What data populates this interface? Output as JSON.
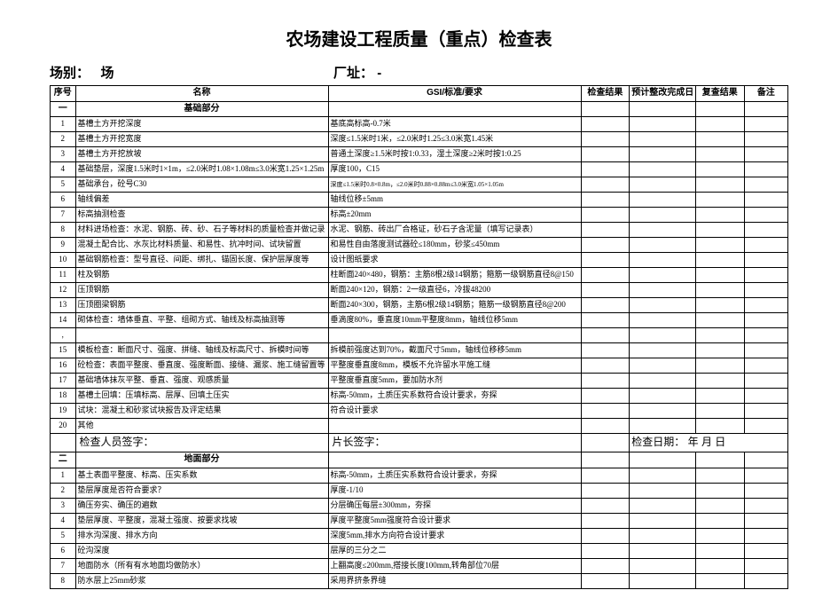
{
  "title": "农场建设工程质量（重点）检查表",
  "meta": {
    "field_label": "场别：",
    "field_value": "场",
    "addr_label": "厂址：",
    "addr_value": "-"
  },
  "columns": {
    "idx": "序号",
    "name": "名称",
    "gsi": "GSI/标准/要求",
    "res": "检查结果",
    "plan": "预计整改完成日",
    "re": "复查结果",
    "note": "备注"
  },
  "section1_idx": "一",
  "section1_title": "基础部分",
  "rows1": [
    {
      "n": "1",
      "name": "基槽土方开挖深度",
      "gsi": "基底高标高-0.7米"
    },
    {
      "n": "2",
      "name": "基槽土方开挖宽度",
      "gsi": "深度≤1.5米时1米，≤2.0米时1.25≤3.0米宽1.45米"
    },
    {
      "n": "3",
      "name": "基槽土方开挖放坡",
      "gsi": "普通土深度≥1.5米时按1:0.33，湿土深度≥2米时按1:0.25"
    },
    {
      "n": "4",
      "name": "基础垫层，深度1.5米时1×1m，≤2.0米时1.08×1.08m≤3.0米宽1.25×1.25m",
      "gsi": "厚度100，C15"
    },
    {
      "n": "5",
      "name": "基础承台，砼号C30",
      "gsi": "深度≤1.5米时0.8×0.8m，≤2.0米时0.88×0.88m≤3.0米宽1.05×1.05m",
      "tiny": true
    },
    {
      "n": "6",
      "name": "轴线偏差",
      "gsi": "轴线位移±5mm"
    },
    {
      "n": "7",
      "name": "标高抽测检查",
      "gsi": "标高±20mm"
    },
    {
      "n": "8",
      "name": "材料进场检查：水泥、钢筋、砖、砂、石子等材料的质量检查并做记录",
      "gsi": "水泥、钢筋、砖出厂合格证，砂石子含泥量（填写记录表）"
    },
    {
      "n": "9",
      "name": "混凝土配合比、水灰比材料质量、和易性、抗冲时间、试块留置",
      "gsi": "和易性自由落度测试器砼≤180mm，砂浆≤450mm"
    },
    {
      "n": "10",
      "name": "基础钢筋检查：型号直径、间距、绑扎、锚固长度、保护层厚度等",
      "gsi": "设计图纸要求"
    },
    {
      "n": "11",
      "name": "柱及钢筋",
      "gsi": "柱断面240×480，钢筋：主筋8根2级14钢筋；箍筋一级钢筋直径8@150"
    },
    {
      "n": "12",
      "name": "压顶钢筋",
      "gsi": "断面240×120，钢筋：2一级直径6，冷拔48200"
    },
    {
      "n": "13",
      "name": "压顶圈梁钢筋",
      "gsi": "断面240×300，钢筋，主筋6根2级14钢筋；箍筋一级钢筋直径8@200"
    },
    {
      "n": "14",
      "name": "砌体检查：墙体垂直、平整、组砌方式、轴线及标高抽测等",
      "gsi": "垂滴度80%，垂直度10mm平整度8mm，轴线位移5mm"
    },
    {
      "n": ",",
      "name": "",
      "gsi": ""
    },
    {
      "n": "15",
      "name": "模板检查：断面尺寸、强度、拼缝、轴线及标高尺寸、拆模时间等",
      "gsi": "拆模前强度达到70%，截面尺寸5mm，轴线位移移5mm"
    },
    {
      "n": "16",
      "name": "砼检查：表面平整度、垂直度、强度断面、接缝、漏浆、施工缝留置等",
      "gsi": "平整度垂直度8mm，模板不允许留水平施工缝"
    },
    {
      "n": "17",
      "name": "基础墙体抹灰平整、垂直、强度、观感质量",
      "gsi": "平整度垂直度5mm，要加防水剂"
    },
    {
      "n": "18",
      "name": "基槽土回填：压填标高、层厚、回填土压实",
      "gsi": "标高-50mm，土质压实系数符合设计要求，夯探"
    },
    {
      "n": "19",
      "name": "试块：混凝土和砂浆试块报告及评定结果",
      "gsi": "符合设计要求"
    },
    {
      "n": "20",
      "name": "其他",
      "gsi": ""
    }
  ],
  "sign": {
    "inspector": "检查人员签字：",
    "leader": "片长签字：",
    "date_lbl": "检查日期：",
    "y": "年",
    "m": "月",
    "d": "日"
  },
  "section2_idx": "二",
  "section2_title": "地面部分",
  "rows2": [
    {
      "n": "1",
      "name": "基土表面平整度、标高、压实系数",
      "gsi": "标高-50mm，土质压实系数符合设计要求，夯探"
    },
    {
      "n": "2",
      "name": "垫层厚度是否符合要求？",
      "gsi": "厚度-1/10"
    },
    {
      "n": "3",
      "name": "确压夯实、确压的遍数",
      "gsi": "分层确压每层±300mm，夯探"
    },
    {
      "n": "4",
      "name": "垫层厚度、平整度，混凝土强度、按要求找坡",
      "gsi": "厚度平整度5mm强度符合设计要求"
    },
    {
      "n": "5",
      "name": "排水沟深度、排水方向",
      "gsi": "深度5mm,排水方向符合设计要求"
    },
    {
      "n": "6",
      "name": "砼沟深度",
      "gsi": "层厚的三分之二"
    },
    {
      "n": "7",
      "name": "地面防水（所有有水地面均做防水）",
      "gsi": "上翻高度≤200mm,搭接长度100mm,转角部位70层"
    },
    {
      "n": "8",
      "name": "防水层上25mm砂浆",
      "gsi": "采用界挤条界缝"
    }
  ]
}
